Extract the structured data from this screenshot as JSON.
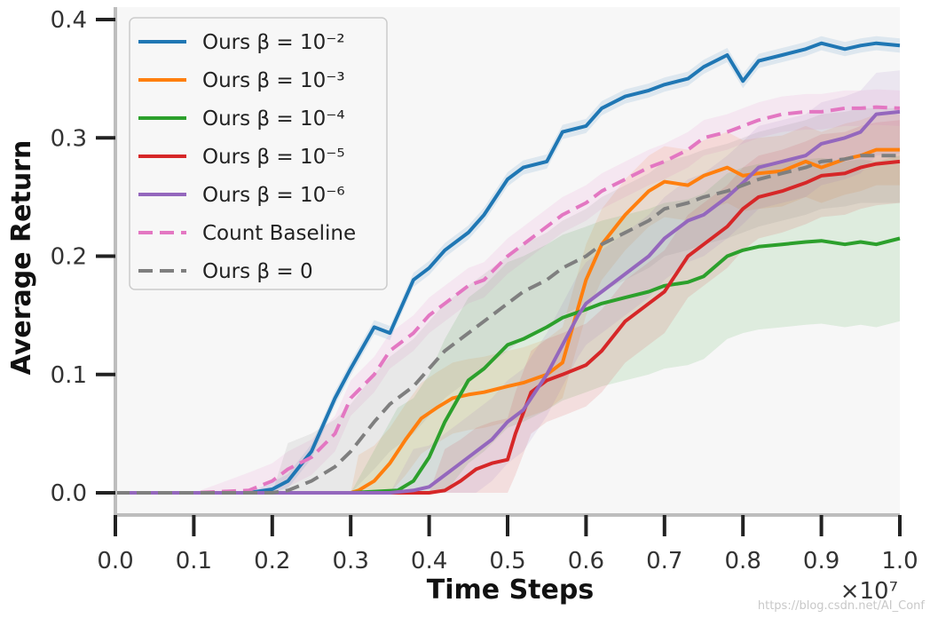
{
  "chart_data": {
    "type": "line",
    "xlabel": "Time Steps",
    "ylabel": "Average Return",
    "x_multiplier_label": "×10⁷",
    "xlim": [
      0.0,
      1.0
    ],
    "ylim": [
      0.0,
      0.4
    ],
    "xticks": [
      "0.0",
      "0.1",
      "0.2",
      "0.3",
      "0.4",
      "0.5",
      "0.6",
      "0.7",
      "0.8",
      "0.9",
      "1.0"
    ],
    "yticks": [
      "0.0",
      "0.1",
      "0.2",
      "0.3",
      "0.4"
    ],
    "grid": false,
    "legend_position": "top-left",
    "series": [
      {
        "name": "Ours β = 10⁻²",
        "color": "#1f77b4",
        "dash": "solid",
        "x": [
          0,
          0.1,
          0.17,
          0.2,
          0.22,
          0.25,
          0.28,
          0.3,
          0.33,
          0.35,
          0.38,
          0.4,
          0.42,
          0.45,
          0.47,
          0.5,
          0.52,
          0.55,
          0.57,
          0.6,
          0.62,
          0.65,
          0.68,
          0.7,
          0.73,
          0.75,
          0.78,
          0.8,
          0.82,
          0.85,
          0.88,
          0.9,
          0.93,
          0.95,
          0.97,
          1.0
        ],
        "y": [
          0,
          0,
          0,
          0.003,
          0.01,
          0.035,
          0.08,
          0.105,
          0.14,
          0.135,
          0.18,
          0.19,
          0.205,
          0.22,
          0.235,
          0.265,
          0.275,
          0.28,
          0.305,
          0.31,
          0.325,
          0.335,
          0.34,
          0.345,
          0.35,
          0.36,
          0.37,
          0.348,
          0.365,
          0.37,
          0.375,
          0.38,
          0.375,
          0.378,
          0.38,
          0.378
        ],
        "band": 0.006
      },
      {
        "name": "Ours β = 10⁻³",
        "color": "#ff7f0e",
        "dash": "solid",
        "x": [
          0,
          0.1,
          0.2,
          0.3,
          0.31,
          0.33,
          0.35,
          0.37,
          0.39,
          0.41,
          0.43,
          0.45,
          0.47,
          0.5,
          0.52,
          0.55,
          0.57,
          0.6,
          0.62,
          0.65,
          0.68,
          0.7,
          0.73,
          0.75,
          0.78,
          0.8,
          0.82,
          0.85,
          0.88,
          0.9,
          0.93,
          0.95,
          0.97,
          1.0
        ],
        "y": [
          0,
          0,
          0,
          0,
          0.002,
          0.01,
          0.025,
          0.045,
          0.063,
          0.072,
          0.08,
          0.083,
          0.085,
          0.09,
          0.093,
          0.1,
          0.11,
          0.18,
          0.21,
          0.235,
          0.255,
          0.263,
          0.26,
          0.268,
          0.275,
          0.268,
          0.27,
          0.272,
          0.28,
          0.275,
          0.282,
          0.285,
          0.29,
          0.29
        ],
        "band": 0.03
      },
      {
        "name": "Ours β = 10⁻⁴",
        "color": "#2ca02c",
        "dash": "solid",
        "x": [
          0,
          0.1,
          0.2,
          0.3,
          0.36,
          0.38,
          0.4,
          0.42,
          0.45,
          0.47,
          0.5,
          0.52,
          0.55,
          0.57,
          0.6,
          0.62,
          0.65,
          0.68,
          0.7,
          0.73,
          0.75,
          0.78,
          0.8,
          0.82,
          0.85,
          0.88,
          0.9,
          0.93,
          0.95,
          0.97,
          1.0
        ],
        "y": [
          0,
          0,
          0,
          0,
          0.002,
          0.01,
          0.03,
          0.06,
          0.095,
          0.105,
          0.125,
          0.13,
          0.14,
          0.148,
          0.155,
          0.16,
          0.165,
          0.17,
          0.175,
          0.178,
          0.183,
          0.2,
          0.205,
          0.208,
          0.21,
          0.212,
          0.213,
          0.21,
          0.212,
          0.21,
          0.215
        ],
        "band": 0.07
      },
      {
        "name": "Ours β = 10⁻⁵",
        "color": "#d62728",
        "dash": "solid",
        "x": [
          0,
          0.1,
          0.2,
          0.3,
          0.35,
          0.4,
          0.42,
          0.44,
          0.46,
          0.48,
          0.5,
          0.51,
          0.53,
          0.55,
          0.57,
          0.6,
          0.62,
          0.65,
          0.68,
          0.7,
          0.73,
          0.75,
          0.78,
          0.8,
          0.82,
          0.85,
          0.88,
          0.9,
          0.93,
          0.95,
          0.97,
          1.0
        ],
        "y": [
          0,
          0,
          0,
          0,
          0,
          0,
          0.002,
          0.01,
          0.02,
          0.025,
          0.028,
          0.05,
          0.085,
          0.095,
          0.1,
          0.108,
          0.12,
          0.145,
          0.16,
          0.17,
          0.2,
          0.21,
          0.225,
          0.24,
          0.25,
          0.255,
          0.262,
          0.268,
          0.27,
          0.275,
          0.278,
          0.28
        ],
        "band": 0.035
      },
      {
        "name": "Ours β = 10⁻⁶",
        "color": "#9467bd",
        "dash": "solid",
        "x": [
          0,
          0.1,
          0.2,
          0.3,
          0.35,
          0.38,
          0.4,
          0.42,
          0.44,
          0.46,
          0.48,
          0.5,
          0.52,
          0.55,
          0.57,
          0.59,
          0.6,
          0.62,
          0.65,
          0.68,
          0.7,
          0.73,
          0.75,
          0.78,
          0.8,
          0.82,
          0.85,
          0.88,
          0.9,
          0.93,
          0.95,
          0.97,
          1.0
        ],
        "y": [
          0,
          0,
          0,
          0,
          0,
          0.002,
          0.005,
          0.015,
          0.025,
          0.035,
          0.045,
          0.06,
          0.07,
          0.1,
          0.125,
          0.15,
          0.16,
          0.17,
          0.185,
          0.2,
          0.215,
          0.23,
          0.235,
          0.25,
          0.262,
          0.275,
          0.28,
          0.285,
          0.295,
          0.3,
          0.305,
          0.32,
          0.322
        ],
        "band": 0.035
      },
      {
        "name": "Count Baseline",
        "color": "#e377c2",
        "dash": "dashed",
        "x": [
          0,
          0.1,
          0.17,
          0.2,
          0.22,
          0.25,
          0.28,
          0.3,
          0.33,
          0.35,
          0.38,
          0.4,
          0.42,
          0.45,
          0.47,
          0.5,
          0.52,
          0.55,
          0.57,
          0.6,
          0.62,
          0.65,
          0.68,
          0.7,
          0.73,
          0.75,
          0.78,
          0.8,
          0.82,
          0.85,
          0.88,
          0.9,
          0.93,
          0.95,
          0.97,
          1.0
        ],
        "y": [
          0,
          0,
          0.002,
          0.01,
          0.02,
          0.03,
          0.05,
          0.08,
          0.1,
          0.12,
          0.135,
          0.15,
          0.16,
          0.175,
          0.18,
          0.2,
          0.21,
          0.225,
          0.235,
          0.245,
          0.255,
          0.265,
          0.275,
          0.28,
          0.29,
          0.3,
          0.305,
          0.31,
          0.315,
          0.32,
          0.322,
          0.322,
          0.325,
          0.325,
          0.326,
          0.325
        ],
        "band": 0.015
      },
      {
        "name": "Ours β = 0",
        "color": "#7f7f7f",
        "dash": "dashed",
        "x": [
          0,
          0.1,
          0.2,
          0.22,
          0.25,
          0.28,
          0.3,
          0.33,
          0.35,
          0.38,
          0.4,
          0.42,
          0.45,
          0.47,
          0.5,
          0.52,
          0.55,
          0.57,
          0.6,
          0.62,
          0.65,
          0.68,
          0.7,
          0.73,
          0.75,
          0.78,
          0.8,
          0.82,
          0.85,
          0.88,
          0.9,
          0.93,
          0.95,
          0.97,
          1.0
        ],
        "y": [
          0,
          0,
          0,
          0.002,
          0.01,
          0.022,
          0.035,
          0.06,
          0.075,
          0.09,
          0.105,
          0.12,
          0.135,
          0.145,
          0.16,
          0.17,
          0.18,
          0.19,
          0.2,
          0.21,
          0.22,
          0.23,
          0.24,
          0.245,
          0.25,
          0.255,
          0.26,
          0.265,
          0.27,
          0.275,
          0.28,
          0.282,
          0.285,
          0.285,
          0.285
        ],
        "band": 0.04
      }
    ]
  },
  "watermark": "https://blog.csdn.net/AI_Conf"
}
